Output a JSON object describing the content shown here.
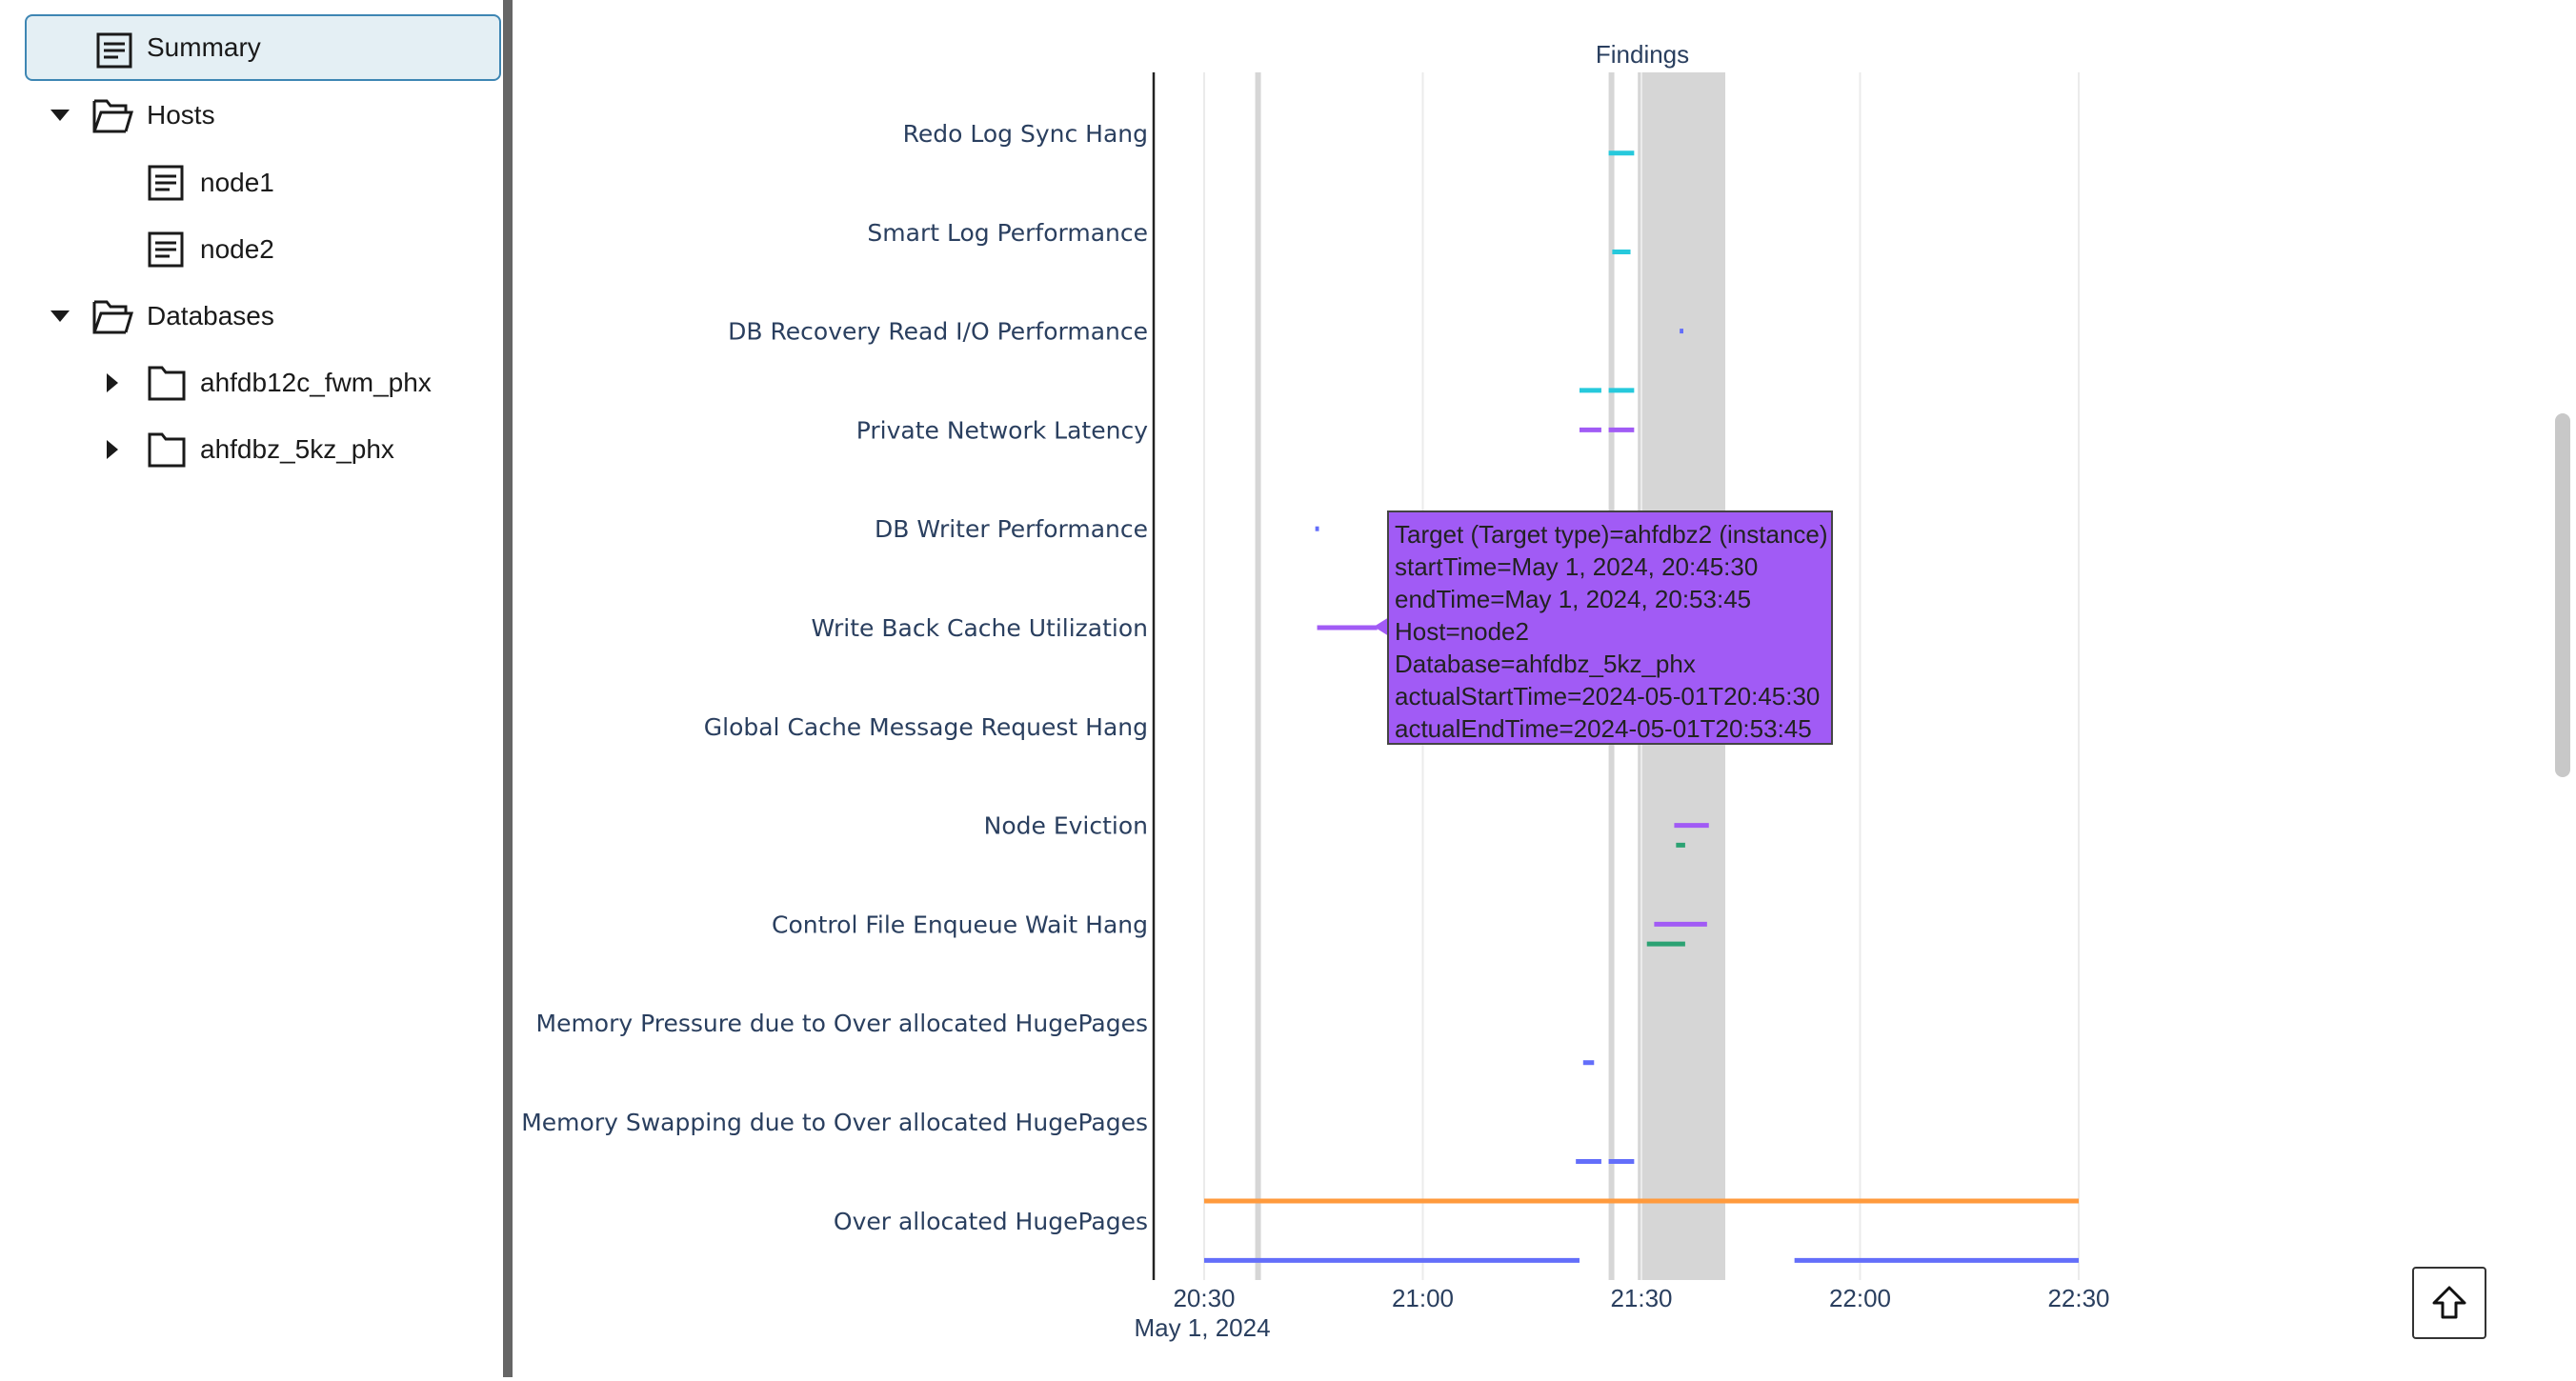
{
  "sidebar": {
    "items": [
      {
        "label": "Summary",
        "icon": "document-icon",
        "selected": true
      },
      {
        "label": "Hosts",
        "icon": "folder-open-icon",
        "expanded": true
      },
      {
        "label": "node1",
        "icon": "document-icon"
      },
      {
        "label": "node2",
        "icon": "document-icon"
      },
      {
        "label": "Databases",
        "icon": "folder-open-icon",
        "expanded": true
      },
      {
        "label": "ahfdb12c_fwm_phx",
        "icon": "folder-icon",
        "expanded": false
      },
      {
        "label": "ahfdbz_5kz_phx",
        "icon": "folder-icon",
        "expanded": false
      }
    ]
  },
  "chart_data": {
    "type": "timeline",
    "title": "Findings",
    "x_axis": {
      "ticks": [
        "20:30",
        "21:00",
        "21:30",
        "22:00",
        "22:30"
      ],
      "date_label": "May 1, 2024",
      "range": [
        "2024-05-01T20:30:00",
        "2024-05-01T22:30:00"
      ]
    },
    "categories": [
      "Redo Log Sync Hang",
      "Smart Log Performance",
      "DB Recovery Read I/O Performance",
      "Private Network Latency",
      "DB Writer Performance",
      "Write Back Cache Utilization",
      "Global Cache Message Request Hang",
      "Node Eviction",
      "Control File Enqueue Wait Hang",
      "Memory Pressure due to Over allocated HugePages",
      "Memory Swapping due to Over allocated HugePages",
      "Over allocated HugePages"
    ],
    "shaded_periods": [
      {
        "start": "20:37:00",
        "end": "20:37:45"
      },
      {
        "start": "21:25:30",
        "end": "21:26:15"
      },
      {
        "start": "21:29:30",
        "end": "21:41:30"
      }
    ],
    "colors": {
      "cyan": "#26c9dc",
      "purple": "#a15bf5",
      "blue": "#636efa",
      "green": "#2ca273",
      "orange": "#ff9a3d",
      "shade": "#d6d6d6"
    },
    "segments": [
      {
        "category": "Redo Log Sync Hang",
        "offset": 0.2,
        "color": "cyan",
        "start": "21:25:30",
        "end": "21:29:00"
      },
      {
        "category": "Smart Log Performance",
        "offset": 0.2,
        "color": "cyan",
        "start": "21:26:00",
        "end": "21:28:30"
      },
      {
        "category": "DB Recovery Read I/O Performance",
        "offset": 0.0,
        "color": "blue",
        "start": "21:35:15",
        "end": "21:35:45"
      },
      {
        "category": "Private Network Latency",
        "offset": -0.4,
        "color": "cyan",
        "start": "21:21:30",
        "end": "21:24:30"
      },
      {
        "category": "Private Network Latency",
        "offset": -0.4,
        "color": "cyan",
        "start": "21:25:30",
        "end": "21:29:00"
      },
      {
        "category": "Private Network Latency",
        "offset": 0.0,
        "color": "purple",
        "start": "21:21:30",
        "end": "21:24:30"
      },
      {
        "category": "Private Network Latency",
        "offset": 0.0,
        "color": "purple",
        "start": "21:25:30",
        "end": "21:29:00"
      },
      {
        "category": "DB Writer Performance",
        "offset": 0.0,
        "color": "blue",
        "start": "20:45:15",
        "end": "20:45:45"
      },
      {
        "category": "Write Back Cache Utilization",
        "offset": 0.0,
        "color": "purple",
        "start": "20:45:30",
        "end": "20:53:45"
      },
      {
        "category": "Node Eviction",
        "offset": 0.0,
        "color": "purple",
        "start": "21:34:30",
        "end": "21:39:15"
      },
      {
        "category": "Node Eviction",
        "offset": 0.2,
        "color": "green",
        "start": "21:34:45",
        "end": "21:36:00"
      },
      {
        "category": "Control File Enqueue Wait Hang",
        "offset": 0.0,
        "color": "purple",
        "start": "21:31:45",
        "end": "21:39:00"
      },
      {
        "category": "Control File Enqueue Wait Hang",
        "offset": 0.2,
        "color": "green",
        "start": "21:30:45",
        "end": "21:36:00"
      },
      {
        "category": "Memory Pressure due to Over allocated HugePages",
        "offset": 0.4,
        "color": "blue",
        "start": "21:22:00",
        "end": "21:23:30"
      },
      {
        "category": "Memory Swapping due to Over allocated HugePages",
        "offset": 0.4,
        "color": "blue",
        "start": "21:21:00",
        "end": "21:24:30"
      },
      {
        "category": "Memory Swapping due to Over allocated HugePages",
        "offset": 0.4,
        "color": "blue",
        "start": "21:25:30",
        "end": "21:29:00"
      },
      {
        "category": "Over allocated HugePages",
        "offset": -0.2,
        "color": "orange",
        "start": "20:30:00",
        "end": "22:30:00"
      },
      {
        "category": "Over allocated HugePages",
        "offset": 0.4,
        "color": "blue",
        "start": "20:30:00",
        "end": "21:21:30"
      },
      {
        "category": "Over allocated HugePages",
        "offset": 0.4,
        "color": "blue",
        "start": "21:51:00",
        "end": "22:30:00"
      }
    ]
  },
  "tooltip": {
    "lines": [
      "Target (Target type)=ahfdbz2 (instance)",
      "startTime=May 1, 2024, 20:45:30",
      "endTime=May 1, 2024, 20:53:45",
      "Host=node2",
      "Database=ahfdbz_5kz_phx",
      "actualStartTime=2024-05-01T20:45:30",
      "actualEndTime=2024-05-01T20:53:45"
    ]
  },
  "scroll_top_button": {
    "icon": "arrow-up-icon"
  }
}
